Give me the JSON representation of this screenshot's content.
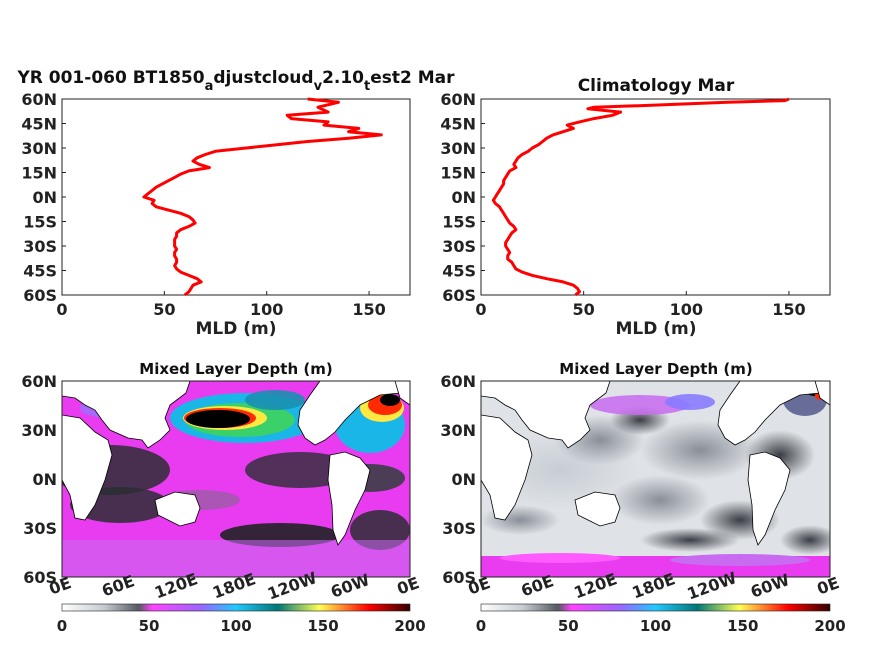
{
  "chart_data": [
    {
      "type": "line",
      "title_main": "YR 001-060 BT1850",
      "title_sub1": "a",
      "title_mid1": "djustcloud",
      "title_sub2": "v",
      "title_mid2": "2.10",
      "title_sub3": "t",
      "title_end": "est2 Mar",
      "xlabel": "MLD (m)",
      "xlim": [
        0,
        170
      ],
      "ylim": [
        -60,
        60
      ],
      "xticks": [
        "0",
        "50",
        "100",
        "150"
      ],
      "yticks": [
        "60N",
        "45N",
        "30N",
        "15N",
        "0N",
        "15S",
        "30S",
        "45S",
        "60S"
      ],
      "series": [
        {
          "color": "#ff0000",
          "lat": [
            60,
            58,
            55,
            52,
            50,
            48,
            46,
            44,
            42,
            40,
            38,
            36,
            34,
            32,
            30,
            28,
            26,
            24,
            22,
            20,
            18,
            16,
            14,
            12,
            10,
            8,
            6,
            4,
            2,
            0,
            -2,
            -4,
            -6,
            -8,
            -10,
            -12,
            -14,
            -16,
            -18,
            -20,
            -22,
            -24,
            -26,
            -28,
            -30,
            -32,
            -34,
            -36,
            -38,
            -40,
            -42,
            -44,
            -46,
            -48,
            -50,
            -52,
            -54,
            -56,
            -58,
            -60
          ],
          "x": [
            120,
            135,
            125,
            130,
            110,
            112,
            130,
            128,
            145,
            140,
            156,
            140,
            120,
            105,
            90,
            75,
            70,
            66,
            64,
            67,
            72,
            62,
            58,
            55,
            52,
            49,
            46,
            44,
            42,
            40,
            45,
            44,
            46,
            52,
            58,
            62,
            64,
            65,
            62,
            58,
            56,
            56,
            55,
            55,
            55,
            56,
            55,
            55,
            56,
            56,
            55,
            56,
            58,
            62,
            66,
            68,
            64,
            63,
            62,
            60
          ]
        }
      ]
    },
    {
      "type": "line",
      "title": "Climatology Mar",
      "xlabel": "MLD (m)",
      "xlim": [
        0,
        170
      ],
      "ylim": [
        -60,
        60
      ],
      "xticks": [
        "0",
        "50",
        "100",
        "150"
      ],
      "yticks": [
        "60N",
        "45N",
        "30N",
        "15N",
        "0N",
        "15S",
        "30S",
        "45S",
        "60S"
      ],
      "series": [
        {
          "color": "#ff0000",
          "lat": [
            60,
            59,
            58,
            57,
            56,
            55,
            54,
            52,
            50,
            48,
            46,
            44,
            42,
            40,
            38,
            36,
            34,
            32,
            30,
            28,
            26,
            24,
            22,
            20,
            18,
            16,
            14,
            12,
            10,
            8,
            6,
            4,
            2,
            0,
            -2,
            -4,
            -6,
            -8,
            -10,
            -12,
            -14,
            -16,
            -18,
            -20,
            -22,
            -24,
            -26,
            -28,
            -30,
            -32,
            -34,
            -36,
            -38,
            -40,
            -42,
            -44,
            -46,
            -48,
            -50,
            -52,
            -54,
            -56,
            -58,
            -60
          ],
          "x": [
            150,
            148,
            120,
            100,
            80,
            55,
            52,
            68,
            64,
            55,
            48,
            42,
            45,
            40,
            35,
            32,
            30,
            28,
            25,
            23,
            20,
            18,
            17,
            16,
            17,
            14,
            13,
            12,
            11,
            11,
            10,
            9,
            8,
            7,
            6,
            7,
            9,
            10,
            11,
            12,
            13,
            14,
            16,
            17,
            15,
            14,
            13,
            12,
            12,
            13,
            14,
            13,
            13,
            15,
            16,
            17,
            20,
            25,
            32,
            40,
            45,
            47,
            48,
            46
          ]
        }
      ]
    },
    {
      "type": "heatmap",
      "title": "Mixed Layer Depth (m)",
      "xticks": [
        "0E",
        "60E",
        "120E",
        "180E",
        "120W",
        "60W",
        "0E"
      ],
      "yticks": [
        "60N",
        "30N",
        "0N",
        "30S",
        "60S"
      ],
      "colorbar": {
        "ticks": [
          "0",
          "50",
          "100",
          "150",
          "200"
        ],
        "range": [
          0,
          200
        ]
      }
    },
    {
      "type": "heatmap",
      "title": "Mixed Layer Depth (m)",
      "xticks": [
        "0E",
        "60E",
        "120E",
        "180E",
        "120W",
        "60W",
        "0E"
      ],
      "yticks": [
        "60N",
        "30N",
        "0N",
        "30S",
        "60S"
      ],
      "colorbar": {
        "ticks": [
          "0",
          "50",
          "100",
          "150",
          "200"
        ],
        "range": [
          0,
          200
        ]
      }
    }
  ]
}
